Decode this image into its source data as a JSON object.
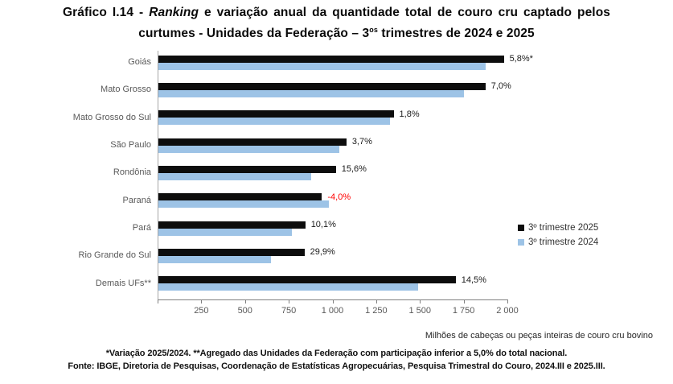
{
  "title": {
    "line1_prefix": "Gráfico I.14 - ",
    "line1_italic": "Ranking",
    "line1_rest": " e variação anual da quantidade total de couro cru captado pelos",
    "line2_prefix": "curtumes - Unidades da Federação – 3",
    "line2_sup": "os",
    "line2_rest": " trimestres de 2024 e 2025"
  },
  "chart_data": {
    "type": "bar",
    "orientation": "horizontal",
    "title": "Gráfico I.14 - Ranking e variação anual da quantidade total de couro cru captado pelos curtumes - Unidades da Federação – 3os trimestres de 2024 e 2025",
    "categories": [
      "Goiás",
      "Mato Grosso",
      "Mato Grosso do Sul",
      "São Paulo",
      "Rondônia",
      "Paraná",
      "Pará",
      "Rio Grande do Sul",
      "Demais UFs**"
    ],
    "series": [
      {
        "name": "3º trimestre 2025",
        "color": "#0d0d0d",
        "values": [
          1975,
          1870,
          1345,
          1075,
          1015,
          935,
          840,
          835,
          1700
        ]
      },
      {
        "name": "3º trimestre 2024",
        "color": "#9dc3e6",
        "values": [
          1870,
          1745,
          1325,
          1035,
          875,
          975,
          765,
          645,
          1485
        ]
      }
    ],
    "variation_labels": [
      {
        "text": "5,8%*",
        "color": "#1a1a1a"
      },
      {
        "text": "7,0%",
        "color": "#1a1a1a"
      },
      {
        "text": "1,8%",
        "color": "#1a1a1a"
      },
      {
        "text": "3,7%",
        "color": "#1a1a1a"
      },
      {
        "text": "15,6%",
        "color": "#1a1a1a"
      },
      {
        "text": "-4,0%",
        "color": "#ff0000"
      },
      {
        "text": "10,1%",
        "color": "#1a1a1a"
      },
      {
        "text": "29,9%",
        "color": "#1a1a1a"
      },
      {
        "text": "14,5%",
        "color": "#1a1a1a"
      }
    ],
    "xlim": [
      0,
      2000
    ],
    "xticks": [
      0,
      250,
      500,
      750,
      1000,
      1250,
      1500,
      1750,
      2000
    ],
    "xtick_labels": [
      "",
      "250",
      "500",
      "750",
      "1 000",
      "1 250",
      "1 500",
      "1 750",
      "2 000"
    ],
    "xlabel": "Milhões de cabeças ou peças inteiras de couro cru bovino",
    "grid": false,
    "legend_position": "right"
  },
  "footnotes": {
    "line1": "*Variação 2025/2024. **Agregado das Unidades da Federação com participação inferior a 5,0% do total nacional.",
    "line2": "Fonte: IBGE, Diretoria de Pesquisas, Coordenação de Estatísticas Agropecuárias, Pesquisa Trimestral do Couro, 2024.III e 2025.III."
  },
  "colors": {
    "bar_2025": "#0d0d0d",
    "bar_2024": "#9dc3e6",
    "negative_label": "#ff0000",
    "axis_line": "#808080",
    "spine": "#a6a6a6",
    "tick_text": "#595959",
    "category_text": "#595959"
  }
}
